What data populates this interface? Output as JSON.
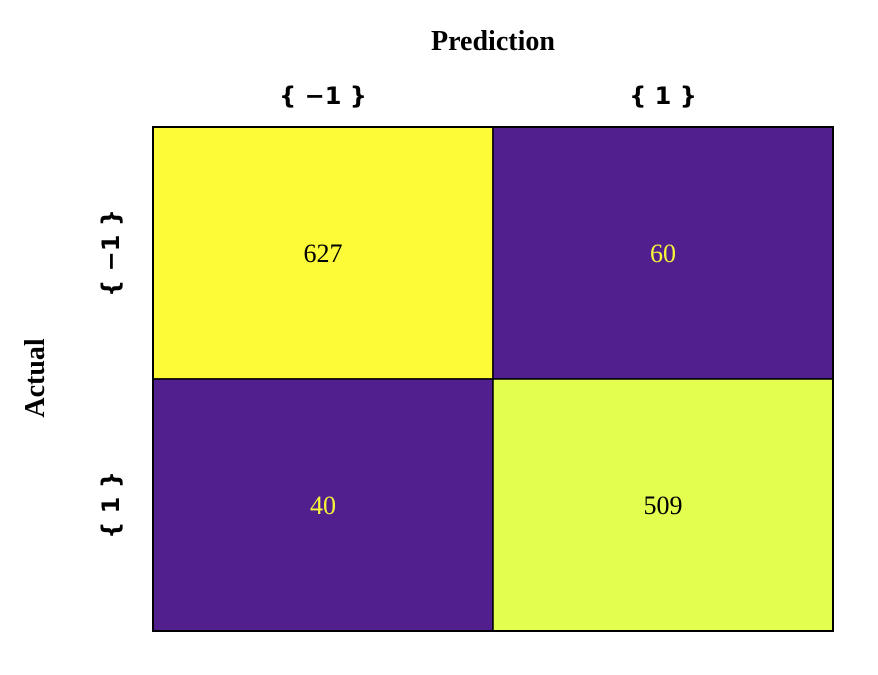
{
  "chart_data": {
    "type": "heatmap",
    "xlabel": "Prediction",
    "ylabel": "Actual",
    "x_categories": [
      "{ −1 }",
      "{ 1 }"
    ],
    "y_categories": [
      "{ −1 }",
      "{ 1 }"
    ],
    "values": [
      [
        627,
        60
      ],
      [
        40,
        509
      ]
    ],
    "colorscale": "viridis",
    "cell_colors": [
      [
        "#fdfb37",
        "#521f8f"
      ],
      [
        "#521f8f",
        "#e3fe4f"
      ]
    ],
    "text_colors": {
      "light_cell": "#000000",
      "dark_cell": "#f5f53a"
    },
    "colorbar": false
  }
}
